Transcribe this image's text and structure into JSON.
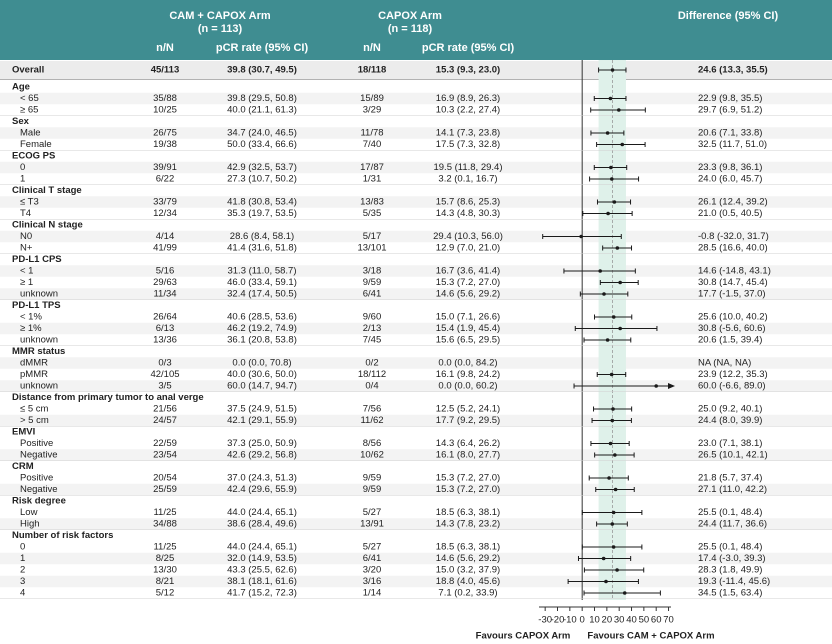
{
  "chart_data": {
    "type": "forest",
    "header": {
      "cam_arm": "CAM + CAPOX Arm",
      "cam_n": "(n = 113)",
      "capox_arm": "CAPOX Arm",
      "capox_n": "(n = 118)",
      "difference": "Difference (95% CI)"
    },
    "columns": [
      "n/N",
      "pCR rate (95% CI)",
      "n/N",
      "pCR rate (95% CI)"
    ],
    "overall": {
      "label": "Overall",
      "cam_n": "45/113",
      "cam_rate": "39.8 (30.7, 49.5)",
      "capox_n": "18/118",
      "capox_rate": "15.3 (9.3, 23.0)",
      "value": 24.6,
      "lower": 13.3,
      "upper": 35.5,
      "value_label": "24.6 (13.3, 35.5)"
    },
    "groups": [
      {
        "label": "Age",
        "rows": [
          {
            "label": "< 65",
            "cam_n": "35/88",
            "cam_rate": "39.8 (29.5, 50.8)",
            "capox_n": "15/89",
            "capox_rate": "16.9 (8.9, 26.3)",
            "value": 22.9,
            "lower": 9.8,
            "upper": 35.5,
            "value_label": "22.9 (9.8, 35.5)"
          },
          {
            "label": "≥ 65",
            "cam_n": "10/25",
            "cam_rate": "40.0 (21.1, 61.3)",
            "capox_n": "3/29",
            "capox_rate": "10.3 (2.2, 27.4)",
            "value": 29.7,
            "lower": 6.9,
            "upper": 51.2,
            "value_label": "29.7 (6.9, 51.2)"
          }
        ]
      },
      {
        "label": "Sex",
        "rows": [
          {
            "label": "Male",
            "cam_n": "26/75",
            "cam_rate": "34.7 (24.0, 46.5)",
            "capox_n": "11/78",
            "capox_rate": "14.1 (7.3, 23.8)",
            "value": 20.6,
            "lower": 7.1,
            "upper": 33.8,
            "value_label": "20.6 (7.1, 33.8)"
          },
          {
            "label": "Female",
            "cam_n": "19/38",
            "cam_rate": "50.0 (33.4, 66.6)",
            "capox_n": "7/40",
            "capox_rate": "17.5 (7.3, 32.8)",
            "value": 32.5,
            "lower": 11.7,
            "upper": 51.0,
            "value_label": "32.5 (11.7, 51.0)"
          }
        ]
      },
      {
        "label": "ECOG PS",
        "rows": [
          {
            "label": "0",
            "cam_n": "39/91",
            "cam_rate": "42.9 (32.5, 53.7)",
            "capox_n": "17/87",
            "capox_rate": "19.5 (11.8, 29.4)",
            "value": 23.3,
            "lower": 9.8,
            "upper": 36.1,
            "value_label": "23.3 (9.8, 36.1)"
          },
          {
            "label": "1",
            "cam_n": "6/22",
            "cam_rate": "27.3 (10.7, 50.2)",
            "capox_n": "1/31",
            "capox_rate": "3.2 (0.1, 16.7)",
            "value": 24.0,
            "lower": 6.0,
            "upper": 45.7,
            "value_label": "24.0 (6.0, 45.7)"
          }
        ]
      },
      {
        "label": "Clinical T stage",
        "rows": [
          {
            "label": "≤ T3",
            "cam_n": "33/79",
            "cam_rate": "41.8 (30.8, 53.4)",
            "capox_n": "13/83",
            "capox_rate": "15.7 (8.6, 25.3)",
            "value": 26.1,
            "lower": 12.4,
            "upper": 39.2,
            "value_label": "26.1 (12.4, 39.2)"
          },
          {
            "label": "T4",
            "cam_n": "12/34",
            "cam_rate": "35.3 (19.7, 53.5)",
            "capox_n": "5/35",
            "capox_rate": "14.3 (4.8, 30.3)",
            "value": 21.0,
            "lower": 0.5,
            "upper": 40.5,
            "value_label": "21.0 (0.5, 40.5)"
          }
        ]
      },
      {
        "label": "Clinical N stage",
        "rows": [
          {
            "label": "N0",
            "cam_n": "4/14",
            "cam_rate": "28.6 (8.4, 58.1)",
            "capox_n": "5/17",
            "capox_rate": "29.4 (10.3, 56.0)",
            "value": -0.8,
            "lower": -32.0,
            "upper": 31.7,
            "value_label": "-0.8 (-32.0, 31.7)"
          },
          {
            "label": "N+",
            "cam_n": "41/99",
            "cam_rate": "41.4 (31.6, 51.8)",
            "capox_n": "13/101",
            "capox_rate": "12.9 (7.0, 21.0)",
            "value": 28.5,
            "lower": 16.6,
            "upper": 40.0,
            "value_label": "28.5 (16.6, 40.0)"
          }
        ]
      },
      {
        "label": "PD-L1 CPS",
        "rows": [
          {
            "label": "< 1",
            "cam_n": "5/16",
            "cam_rate": "31.3 (11.0, 58.7)",
            "capox_n": "3/18",
            "capox_rate": "16.7 (3.6, 41.4)",
            "value": 14.6,
            "lower": -14.8,
            "upper": 43.1,
            "value_label": "14.6 (-14.8, 43.1)"
          },
          {
            "label": "≥ 1",
            "cam_n": "29/63",
            "cam_rate": "46.0 (33.4, 59.1)",
            "capox_n": "9/59",
            "capox_rate": "15.3 (7.2, 27.0)",
            "value": 30.8,
            "lower": 14.7,
            "upper": 45.4,
            "value_label": "30.8 (14.7, 45.4)"
          },
          {
            "label": "unknown",
            "cam_n": "11/34",
            "cam_rate": "32.4 (17.4, 50.5)",
            "capox_n": "6/41",
            "capox_rate": "14.6 (5.6, 29.2)",
            "value": 17.7,
            "lower": -1.5,
            "upper": 37.0,
            "value_label": "17.7 (-1.5, 37.0)"
          }
        ]
      },
      {
        "label": "PD-L1 TPS",
        "rows": [
          {
            "label": "< 1%",
            "cam_n": "26/64",
            "cam_rate": "40.6 (28.5, 53.6)",
            "capox_n": "9/60",
            "capox_rate": "15.0 (7.1, 26.6)",
            "value": 25.6,
            "lower": 10.0,
            "upper": 40.2,
            "value_label": "25.6 (10.0, 40.2)"
          },
          {
            "label": "≥ 1%",
            "cam_n": "6/13",
            "cam_rate": "46.2 (19.2, 74.9)",
            "capox_n": "2/13",
            "capox_rate": "15.4 (1.9, 45.4)",
            "value": 30.8,
            "lower": -5.6,
            "upper": 60.6,
            "value_label": "30.8 (-5.6, 60.6)"
          },
          {
            "label": "unknown",
            "cam_n": "13/36",
            "cam_rate": "36.1 (20.8, 53.8)",
            "capox_n": "7/45",
            "capox_rate": "15.6 (6.5, 29.5)",
            "value": 20.6,
            "lower": 1.5,
            "upper": 39.4,
            "value_label": "20.6 (1.5, 39.4)"
          }
        ]
      },
      {
        "label": "MMR status",
        "rows": [
          {
            "label": "dMMR",
            "cam_n": "0/3",
            "cam_rate": "0.0 (0.0, 70.8)",
            "capox_n": "0/2",
            "capox_rate": "0.0 (0.0, 84.2)",
            "value": null,
            "lower": null,
            "upper": null,
            "value_label": "NA (NA, NA)"
          },
          {
            "label": "pMMR",
            "cam_n": "42/105",
            "cam_rate": "40.0 (30.6, 50.0)",
            "capox_n": "18/112",
            "capox_rate": "16.1 (9.8, 24.2)",
            "value": 23.9,
            "lower": 12.2,
            "upper": 35.3,
            "value_label": "23.9 (12.2, 35.3)"
          },
          {
            "label": "unknown",
            "cam_n": "3/5",
            "cam_rate": "60.0 (14.7, 94.7)",
            "capox_n": "0/4",
            "capox_rate": "0.0 (0.0, 60.2)",
            "value": 60.0,
            "lower": -6.6,
            "upper": 89.0,
            "value_label": "60.0 (-6.6, 89.0)"
          }
        ]
      },
      {
        "label": "Distance from primary tumor to anal verge",
        "rows": [
          {
            "label": "≤ 5 cm",
            "cam_n": "21/56",
            "cam_rate": "37.5 (24.9, 51.5)",
            "capox_n": "7/56",
            "capox_rate": "12.5 (5.2, 24.1)",
            "value": 25.0,
            "lower": 9.2,
            "upper": 40.1,
            "value_label": "25.0 (9.2, 40.1)"
          },
          {
            "label": "> 5 cm",
            "cam_n": "24/57",
            "cam_rate": "42.1 (29.1, 55.9)",
            "capox_n": "11/62",
            "capox_rate": "17.7 (9.2, 29.5)",
            "value": 24.4,
            "lower": 8.0,
            "upper": 39.9,
            "value_label": "24.4 (8.0, 39.9)"
          }
        ]
      },
      {
        "label": "EMVI",
        "rows": [
          {
            "label": "Positive",
            "cam_n": "22/59",
            "cam_rate": "37.3 (25.0, 50.9)",
            "capox_n": "8/56",
            "capox_rate": "14.3 (6.4, 26.2)",
            "value": 23.0,
            "lower": 7.1,
            "upper": 38.1,
            "value_label": "23.0 (7.1, 38.1)"
          },
          {
            "label": "Negative",
            "cam_n": "23/54",
            "cam_rate": "42.6 (29.2, 56.8)",
            "capox_n": "10/62",
            "capox_rate": "16.1 (8.0, 27.7)",
            "value": 26.5,
            "lower": 10.1,
            "upper": 42.1,
            "value_label": "26.5 (10.1, 42.1)"
          }
        ]
      },
      {
        "label": "CRM",
        "rows": [
          {
            "label": "Positive",
            "cam_n": "20/54",
            "cam_rate": "37.0 (24.3, 51.3)",
            "capox_n": "9/59",
            "capox_rate": "15.3 (7.2, 27.0)",
            "value": 21.8,
            "lower": 5.7,
            "upper": 37.4,
            "value_label": "21.8 (5.7, 37.4)"
          },
          {
            "label": "Negative",
            "cam_n": "25/59",
            "cam_rate": "42.4 (29.6, 55.9)",
            "capox_n": "9/59",
            "capox_rate": "15.3 (7.2, 27.0)",
            "value": 27.1,
            "lower": 11.0,
            "upper": 42.2,
            "value_label": "27.1 (11.0, 42.2)"
          }
        ]
      },
      {
        "label": "Risk degree",
        "rows": [
          {
            "label": "Low",
            "cam_n": "11/25",
            "cam_rate": "44.0 (24.4, 65.1)",
            "capox_n": "5/27",
            "capox_rate": "18.5 (6.3, 38.1)",
            "value": 25.5,
            "lower": 0.1,
            "upper": 48.4,
            "value_label": "25.5 (0.1, 48.4)"
          },
          {
            "label": "High",
            "cam_n": "34/88",
            "cam_rate": "38.6 (28.4, 49.6)",
            "capox_n": "13/91",
            "capox_rate": "14.3 (7.8, 23.2)",
            "value": 24.4,
            "lower": 11.7,
            "upper": 36.6,
            "value_label": "24.4 (11.7, 36.6)"
          }
        ]
      },
      {
        "label": "Number of risk factors",
        "rows": [
          {
            "label": "0",
            "cam_n": "11/25",
            "cam_rate": "44.0 (24.4, 65.1)",
            "capox_n": "5/27",
            "capox_rate": "18.5 (6.3, 38.1)",
            "value": 25.5,
            "lower": 0.1,
            "upper": 48.4,
            "value_label": "25.5 (0.1, 48.4)"
          },
          {
            "label": "1",
            "cam_n": "8/25",
            "cam_rate": "32.0 (14.9, 53.5)",
            "capox_n": "6/41",
            "capox_rate": "14.6 (5.6, 29.2)",
            "value": 17.4,
            "lower": -3.0,
            "upper": 39.3,
            "value_label": "17.4 (-3.0, 39.3)"
          },
          {
            "label": "2",
            "cam_n": "13/30",
            "cam_rate": "43.3 (25.5, 62.6)",
            "capox_n": "3/20",
            "capox_rate": "15.0 (3.2, 37.9)",
            "value": 28.3,
            "lower": 1.8,
            "upper": 49.9,
            "value_label": "28.3 (1.8, 49.9)"
          },
          {
            "label": "3",
            "cam_n": "8/21",
            "cam_rate": "38.1 (18.1, 61.6)",
            "capox_n": "3/16",
            "capox_rate": "18.8 (4.0, 45.6)",
            "value": 19.3,
            "lower": -11.4,
            "upper": 45.6,
            "value_label": "19.3 (-11.4, 45.6)"
          },
          {
            "label": "4",
            "cam_n": "5/12",
            "cam_rate": "41.7 (15.2, 72.3)",
            "capox_n": "1/14",
            "capox_rate": "7.1 (0.2, 33.9)",
            "value": 34.5,
            "lower": 1.5,
            "upper": 63.4,
            "value_label": "34.5 (1.5, 63.4)"
          }
        ]
      }
    ],
    "xlim": [
      -35,
      72
    ],
    "xticks": [
      -30,
      -20,
      -10,
      0,
      10,
      20,
      30,
      40,
      50,
      60,
      70
    ],
    "reference_line": 0,
    "x_label_left": "Favours CAPOX Arm",
    "x_label_right": "Favours CAM + CAPOX Arm",
    "header_color": "#3f8d91",
    "band_color": "#dff1ea",
    "marker_color": "#1a1a1a"
  }
}
